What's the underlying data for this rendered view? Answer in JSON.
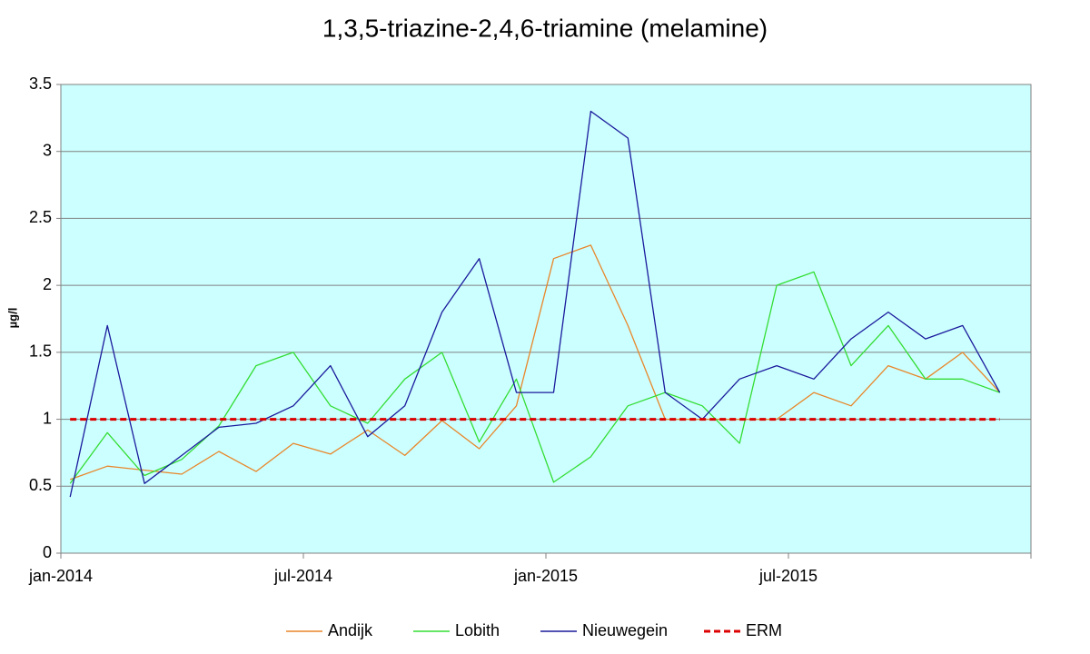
{
  "chart_data": {
    "type": "line",
    "title": "1,3,5-triazine-2,4,6-triamine (melamine)",
    "y_label": "µg/l",
    "x": [
      0.23,
      1.15,
      2.07,
      2.99,
      3.91,
      4.83,
      5.75,
      6.67,
      7.59,
      8.51,
      9.43,
      10.35,
      11.27,
      12.19,
      13.11,
      14.03,
      14.95,
      15.87,
      16.79,
      17.71,
      18.63,
      19.55,
      20.47,
      21.39,
      22.31,
      23.23
    ],
    "xlim": [
      0,
      24
    ],
    "xticks": [
      {
        "value": 0,
        "label": "jan-2014"
      },
      {
        "value": 6,
        "label": "jul-2014"
      },
      {
        "value": 12,
        "label": "jan-2015"
      },
      {
        "value": 18,
        "label": "jul-2015"
      }
    ],
    "ylim": [
      0,
      3.5
    ],
    "yticks": [
      0,
      0.5,
      1,
      1.5,
      2,
      2.5,
      3,
      3.5
    ],
    "grid": true,
    "legend": "bottom",
    "series": [
      {
        "name": "Andijk",
        "color": "#e8862a",
        "values": [
          0.55,
          0.65,
          0.62,
          0.59,
          0.76,
          0.61,
          0.82,
          0.74,
          0.92,
          0.73,
          0.99,
          0.78,
          1.1,
          2.2,
          2.3,
          1.7,
          1.0,
          1.0,
          1.0,
          1.0,
          1.2,
          1.1,
          1.4,
          1.3,
          1.5,
          1.2
        ]
      },
      {
        "name": "Lobith",
        "color": "#33dd33",
        "values": [
          0.52,
          0.9,
          0.58,
          0.7,
          0.95,
          1.4,
          1.5,
          1.1,
          0.97,
          1.3,
          1.5,
          0.83,
          1.3,
          0.53,
          0.72,
          1.1,
          1.2,
          1.1,
          0.82,
          2.0,
          2.1,
          1.4,
          1.7,
          1.3,
          1.3,
          1.2
        ]
      },
      {
        "name": "Nieuwegein",
        "color": "#1a1a9c",
        "values": [
          0.42,
          1.7,
          0.52,
          0.73,
          0.94,
          0.97,
          1.1,
          1.4,
          0.87,
          1.1,
          1.8,
          2.2,
          1.2,
          1.2,
          3.3,
          3.1,
          1.2,
          1.0,
          1.3,
          1.4,
          1.3,
          1.6,
          1.8,
          1.6,
          1.7,
          1.2
        ]
      },
      {
        "name": "ERM",
        "color": "#dd0000",
        "dashed": true,
        "values": [
          1,
          1,
          1,
          1,
          1,
          1,
          1,
          1,
          1,
          1,
          1,
          1,
          1,
          1,
          1,
          1,
          1,
          1,
          1,
          1,
          1,
          1,
          1,
          1,
          1,
          1
        ]
      }
    ]
  }
}
